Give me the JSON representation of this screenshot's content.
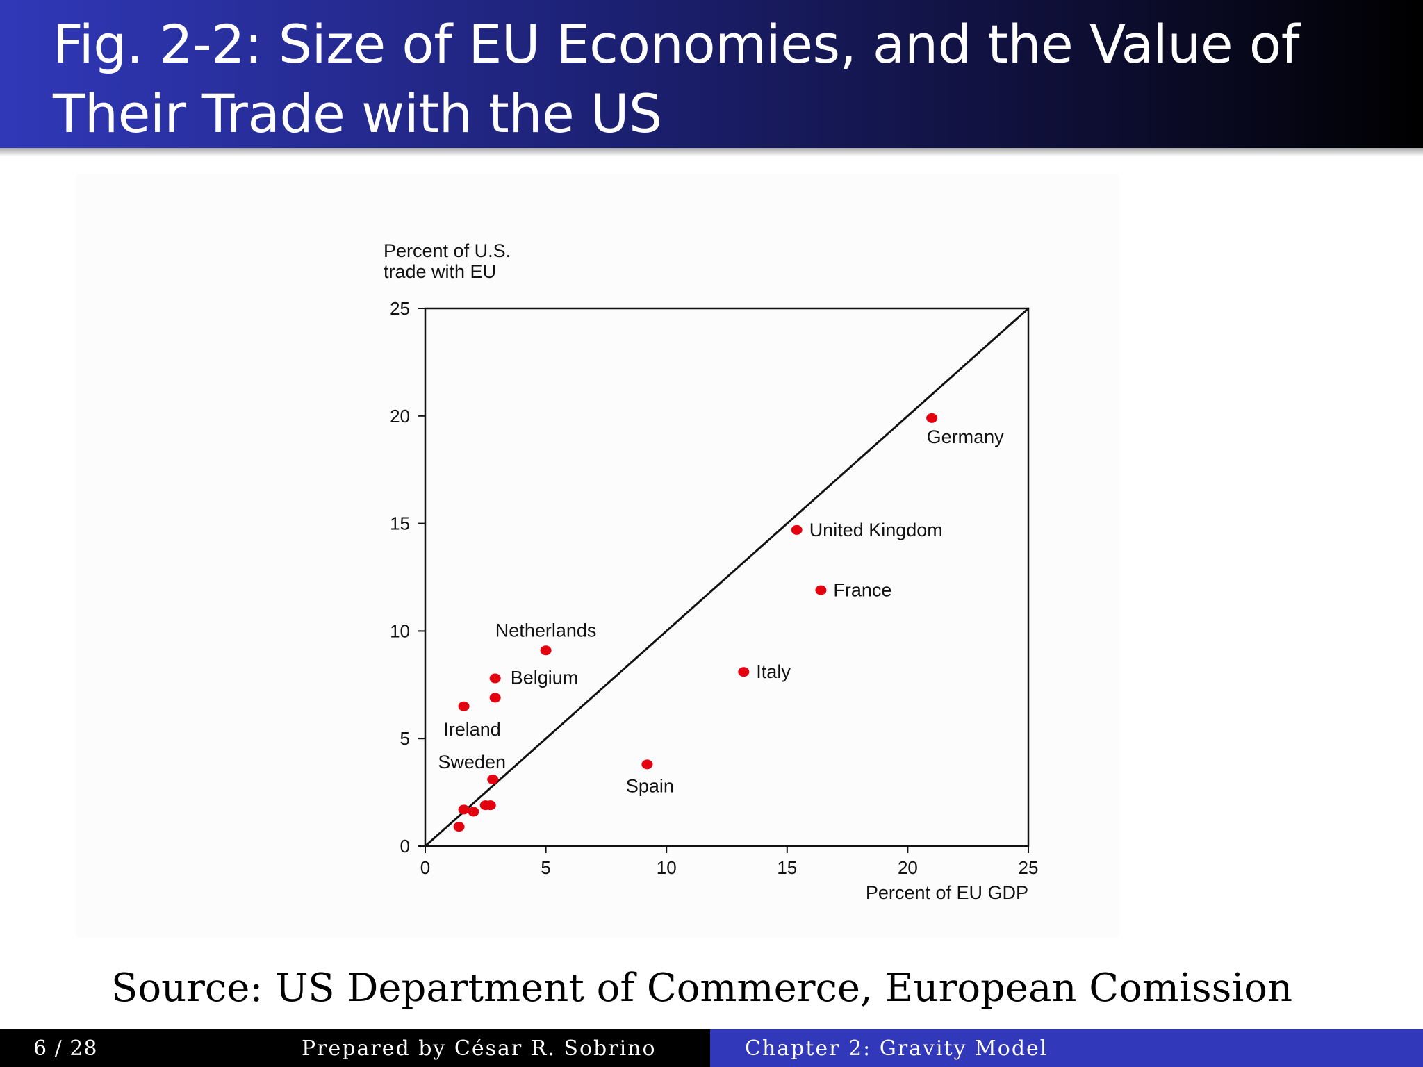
{
  "slide": {
    "title": "Fig. 2-2: Size of EU Economies, and the Value of Their Trade with the US",
    "source": "Source: US Department of Commerce, European Comission"
  },
  "footer": {
    "page": "6 / 28",
    "author": "Prepared by César R. Sobrino",
    "chapter": "Chapter 2: Gravity Model"
  },
  "colors": {
    "point": "#e3000f",
    "header_start": "#3038b8",
    "header_end": "#000000",
    "footer_right": "#3238ba"
  },
  "chart_data": {
    "type": "scatter",
    "xlabel": "Percent of EU GDP",
    "ylabel_lines": [
      "Percent of U.S.",
      "trade with EU"
    ],
    "xlim": [
      0,
      25
    ],
    "ylim": [
      0,
      25
    ],
    "xticks": [
      0,
      5,
      10,
      15,
      20,
      25
    ],
    "yticks": [
      0,
      5,
      10,
      15,
      20,
      25
    ],
    "grid": false,
    "reference_line": {
      "from": [
        0,
        0
      ],
      "to": [
        25,
        25
      ]
    },
    "points": [
      {
        "label": "Germany",
        "x": 21.0,
        "y": 19.9
      },
      {
        "label": "United Kingdom",
        "x": 15.4,
        "y": 14.7
      },
      {
        "label": "France",
        "x": 16.4,
        "y": 11.9
      },
      {
        "label": "Italy",
        "x": 13.2,
        "y": 8.1
      },
      {
        "label": "Spain",
        "x": 9.2,
        "y": 3.8
      },
      {
        "label": "Netherlands",
        "x": 5.0,
        "y": 9.1
      },
      {
        "label": "Belgium",
        "x": 2.9,
        "y": 7.8
      },
      {
        "label": "",
        "x": 2.9,
        "y": 6.9
      },
      {
        "label": "Ireland",
        "x": 1.6,
        "y": 6.5
      },
      {
        "label": "Sweden",
        "x": 2.8,
        "y": 3.1
      },
      {
        "label": "",
        "x": 1.6,
        "y": 1.7
      },
      {
        "label": "",
        "x": 2.0,
        "y": 1.6
      },
      {
        "label": "",
        "x": 2.5,
        "y": 1.9
      },
      {
        "label": "",
        "x": 2.7,
        "y": 1.9
      },
      {
        "label": "",
        "x": 1.4,
        "y": 0.9
      }
    ]
  }
}
